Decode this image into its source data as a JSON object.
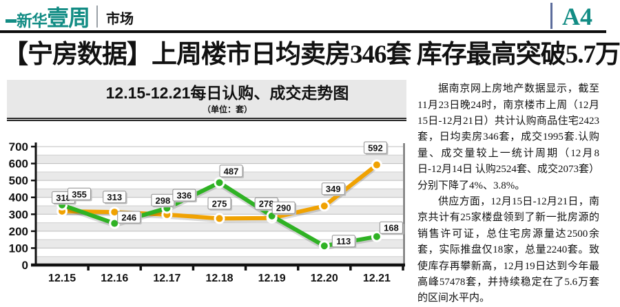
{
  "header": {
    "logo_prefix": "新华",
    "logo_main": "壹周",
    "section": "市场",
    "page_number": "A4",
    "accent_color": "#128C84"
  },
  "headline": "【宁房数据】上周楼市日均卖房346套 库存最高突破5.7万",
  "article": {
    "paragraphs": [
      "据南京网上房地产数据显示，截至11月23日晚24时，南京楼市上周（12月15日-12月21日）共计认购商品住宅2423套，日均卖房346套，成交1995套.认购量、成交量较上一统计周期（12月8日-12月14日 认购2524套、成交2073套）分别下降了4%、3.8%。",
      "供应方面，12月15日-12月21日，南京共计有25家楼盘领到了新一批房源的销售许可证，总住宅房源量达2500余套，实际推盘仅18家，总量2240套。致使库存再攀新高，12月19日达到今年最高峰57478套，并持续稳定在了5.6万套的区间水平内。"
    ]
  },
  "chart_data": {
    "type": "line",
    "title": "12.15-12.21每日认购、成交走势图",
    "subtitle": "（单位：套）",
    "categories": [
      "12.15",
      "12.16",
      "12.17",
      "12.18",
      "12.19",
      "12.20",
      "12.21"
    ],
    "series": [
      {
        "name": "认购",
        "color": "#F0A202",
        "values": [
          318,
          313,
          298,
          275,
          278,
          349,
          592
        ]
      },
      {
        "name": "成交",
        "color": "#2FB224",
        "values": [
          355,
          246,
          336,
          487,
          290,
          113,
          168
        ]
      }
    ],
    "ylim": [
      0,
      700
    ],
    "ytick_step": 100,
    "minor_step": 50,
    "grid": true,
    "legend": "none",
    "stripe_color": "#E9E9E9",
    "label_box": {
      "fill": "#FDFDFD",
      "border": "#8F8F8F"
    }
  }
}
